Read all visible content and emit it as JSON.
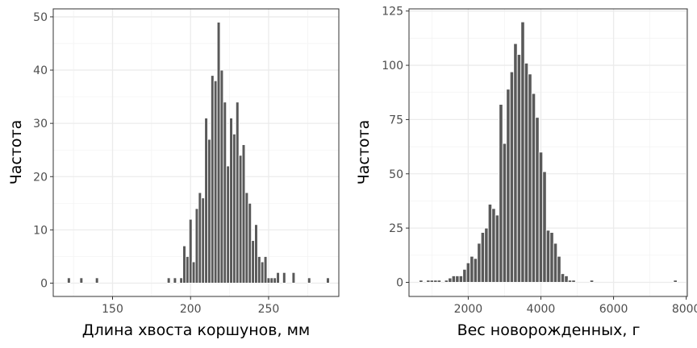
{
  "chart_data": [
    {
      "type": "bar",
      "xlabel": "Длина хвоста коршунов, мм",
      "ylabel": "Частота",
      "xlim": [
        112,
        295
      ],
      "ylim": [
        -2.5,
        51.5
      ],
      "x_ticks": [
        150,
        200,
        250
      ],
      "y_ticks": [
        0,
        10,
        20,
        30,
        40,
        50
      ],
      "bin_width": 2,
      "grid": true,
      "bar_color": "#595959",
      "x": [
        122,
        130,
        140,
        186,
        190,
        194,
        196,
        198,
        200,
        202,
        204,
        206,
        208,
        210,
        212,
        214,
        216,
        218,
        220,
        222,
        224,
        226,
        228,
        230,
        232,
        234,
        236,
        238,
        240,
        242,
        244,
        246,
        248,
        250,
        252,
        254,
        256,
        260,
        266,
        276,
        288
      ],
      "values": [
        1,
        1,
        1,
        1,
        1,
        1,
        7,
        5,
        12,
        4,
        14,
        17,
        16,
        31,
        27,
        39,
        38,
        49,
        40,
        34,
        22,
        31,
        28,
        34,
        24,
        26,
        17,
        15,
        8,
        11,
        5,
        4,
        5,
        1,
        1,
        1,
        2,
        2,
        2,
        1,
        1
      ]
    },
    {
      "type": "bar",
      "xlabel": "Вес новорожденных, г",
      "ylabel": "Частота",
      "xlim": [
        370,
        8030
      ],
      "ylim": [
        -6.5,
        126
      ],
      "x_ticks": [
        2000,
        4000,
        6000,
        8000
      ],
      "y_ticks": [
        0,
        25,
        50,
        75,
        100,
        125
      ],
      "bin_width": 100,
      "grid": true,
      "bar_color": "#595959",
      "x": [
        700,
        900,
        1000,
        1100,
        1200,
        1400,
        1500,
        1600,
        1700,
        1800,
        1900,
        2000,
        2100,
        2200,
        2300,
        2400,
        2500,
        2600,
        2700,
        2800,
        2900,
        3000,
        3100,
        3200,
        3300,
        3400,
        3500,
        3600,
        3700,
        3800,
        3900,
        4000,
        4100,
        4200,
        4300,
        4400,
        4500,
        4600,
        4700,
        4800,
        4900,
        5400,
        7700
      ],
      "values": [
        1,
        1,
        1,
        1,
        1,
        1,
        2,
        3,
        3,
        3,
        6,
        9,
        12,
        11,
        18,
        23,
        25,
        36,
        34,
        31,
        82,
        64,
        89,
        97,
        110,
        105,
        120,
        101,
        96,
        87,
        76,
        60,
        51,
        24,
        23,
        18,
        12,
        4,
        3,
        1,
        1,
        1,
        1
      ]
    }
  ]
}
